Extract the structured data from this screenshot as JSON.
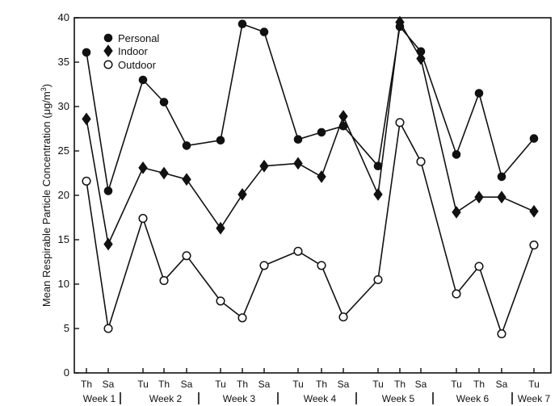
{
  "chart_data": {
    "type": "line",
    "title": "",
    "ylabel": "Mean Respirable Particle Concentration (μg/m³)",
    "ylabel_main": "Mean Respirable Particle Concentration (",
    "ylabel_unit": "μg/m",
    "ylabel_exp": "3",
    "ylabel_close": ")",
    "xlabel": "",
    "ylim": [
      0,
      40
    ],
    "yticks": [
      "0",
      "5",
      "10",
      "15",
      "20",
      "25",
      "30",
      "35",
      "40"
    ],
    "categories": [
      "Th",
      "Sa",
      "Tu",
      "Th",
      "Sa",
      "Tu",
      "Th",
      "Sa",
      "Tu",
      "Th",
      "Sa",
      "Tu",
      "Th",
      "Sa",
      "Tu",
      "Th",
      "Sa",
      "Tu"
    ],
    "weeks": [
      "Week 1",
      "Week 2",
      "Week 3",
      "Week 4",
      "Week 5",
      "Week 6",
      "Week 7"
    ],
    "series": [
      {
        "name": "Personal",
        "marker": "filled-circle",
        "values": [
          36.1,
          20.5,
          33.0,
          30.5,
          25.6,
          26.2,
          39.3,
          38.4,
          26.3,
          27.1,
          27.8,
          23.3,
          39.0,
          36.2,
          24.6,
          31.5,
          22.1,
          26.4
        ]
      },
      {
        "name": "Indoor",
        "marker": "filled-diamond",
        "values": [
          28.6,
          14.5,
          23.1,
          22.5,
          21.8,
          16.3,
          20.1,
          23.3,
          23.6,
          22.1,
          28.9,
          20.1,
          39.5,
          35.4,
          18.1,
          19.8,
          19.8,
          18.2
        ]
      },
      {
        "name": "Outdoor",
        "marker": "open-circle",
        "values": [
          21.6,
          5.0,
          17.4,
          10.4,
          13.2,
          8.1,
          6.2,
          12.1,
          13.7,
          12.1,
          6.3,
          10.5,
          28.2,
          23.8,
          8.9,
          12.0,
          4.4,
          14.4
        ]
      }
    ]
  }
}
